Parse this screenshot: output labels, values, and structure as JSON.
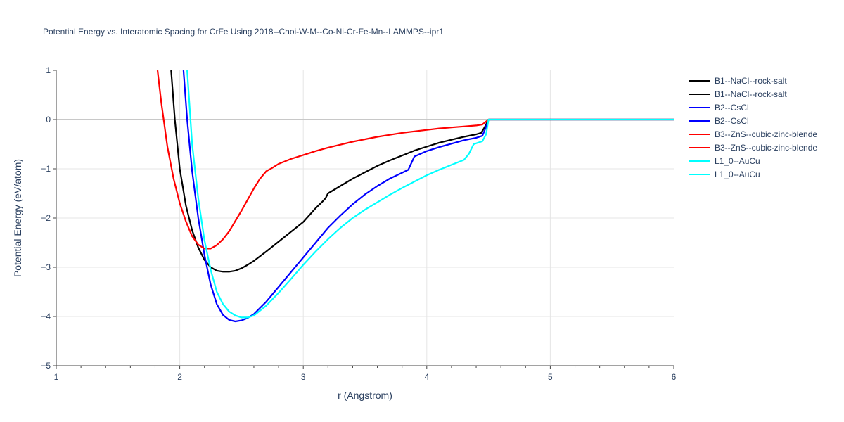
{
  "chart_data": {
    "type": "line",
    "title": "Potential Energy vs. Interatomic Spacing for CrFe Using 2018--Choi-W-M--Co-Ni-Cr-Fe-Mn--LAMMPS--ipr1",
    "xlabel": "r (Angstrom)",
    "ylabel": "Potential Energy (eV/atom)",
    "xlim": [
      1,
      6
    ],
    "ylim": [
      -5,
      1
    ],
    "xticks": [
      "1",
      "2",
      "3",
      "4",
      "5",
      "6"
    ],
    "yticks": [
      "1",
      "0",
      "−1",
      "−2",
      "−3",
      "−4",
      "−5"
    ],
    "grid": true,
    "legend_position": "top-right",
    "series": [
      {
        "name": "B1--NaCl--rock-salt",
        "color": "#000000",
        "x": [
          1.93,
          1.96,
          2.0,
          2.05,
          2.1,
          2.15,
          2.2,
          2.25,
          2.3,
          2.35,
          2.4,
          2.45,
          2.5,
          2.55,
          2.6,
          2.7,
          2.8,
          2.9,
          3.0,
          3.1,
          3.15,
          3.18,
          3.2,
          3.3,
          3.4,
          3.5,
          3.6,
          3.7,
          3.8,
          3.9,
          4.0,
          4.1,
          4.2,
          4.3,
          4.4,
          4.44,
          4.47,
          4.5,
          5.0,
          6.0
        ],
        "y": [
          1.0,
          0.0,
          -1.0,
          -1.75,
          -2.25,
          -2.6,
          -2.85,
          -3.0,
          -3.07,
          -3.09,
          -3.09,
          -3.07,
          -3.02,
          -2.95,
          -2.87,
          -2.68,
          -2.48,
          -2.28,
          -2.08,
          -1.8,
          -1.68,
          -1.6,
          -1.5,
          -1.35,
          -1.2,
          -1.07,
          -0.94,
          -0.83,
          -0.73,
          -0.63,
          -0.55,
          -0.47,
          -0.41,
          -0.35,
          -0.3,
          -0.27,
          -0.15,
          0.0,
          0.0,
          0.0
        ]
      },
      {
        "name": "B2--CsCl",
        "color": "#0000ff",
        "x": [
          2.03,
          2.06,
          2.1,
          2.15,
          2.2,
          2.25,
          2.3,
          2.35,
          2.4,
          2.45,
          2.5,
          2.55,
          2.6,
          2.7,
          2.8,
          2.9,
          3.0,
          3.1,
          3.2,
          3.3,
          3.4,
          3.5,
          3.6,
          3.7,
          3.8,
          3.85,
          3.9,
          4.0,
          4.1,
          4.2,
          4.3,
          4.4,
          4.45,
          4.48,
          4.5,
          5.0,
          6.0
        ],
        "y": [
          1.0,
          0.0,
          -1.05,
          -2.0,
          -2.75,
          -3.35,
          -3.75,
          -3.97,
          -4.07,
          -4.1,
          -4.08,
          -4.03,
          -3.95,
          -3.7,
          -3.4,
          -3.1,
          -2.8,
          -2.5,
          -2.2,
          -1.95,
          -1.72,
          -1.52,
          -1.35,
          -1.2,
          -1.08,
          -1.02,
          -0.75,
          -0.64,
          -0.56,
          -0.49,
          -0.42,
          -0.37,
          -0.33,
          -0.15,
          0.0,
          0.0,
          0.0
        ]
      },
      {
        "name": "B3--ZnS--cubic-zinc-blende",
        "color": "#ff0000",
        "x": [
          1.82,
          1.85,
          1.9,
          1.95,
          2.0,
          2.05,
          2.1,
          2.15,
          2.2,
          2.25,
          2.3,
          2.35,
          2.4,
          2.5,
          2.6,
          2.65,
          2.7,
          2.75,
          2.8,
          2.9,
          3.0,
          3.1,
          3.2,
          3.3,
          3.4,
          3.5,
          3.6,
          3.7,
          3.8,
          3.9,
          4.0,
          4.1,
          4.2,
          4.3,
          4.4,
          4.45,
          4.5,
          5.0,
          6.0
        ],
        "y": [
          1.0,
          0.35,
          -0.55,
          -1.2,
          -1.7,
          -2.07,
          -2.37,
          -2.54,
          -2.62,
          -2.62,
          -2.55,
          -2.43,
          -2.27,
          -1.85,
          -1.4,
          -1.2,
          -1.05,
          -0.98,
          -0.9,
          -0.8,
          -0.72,
          -0.64,
          -0.57,
          -0.51,
          -0.45,
          -0.4,
          -0.35,
          -0.31,
          -0.27,
          -0.24,
          -0.21,
          -0.18,
          -0.16,
          -0.14,
          -0.12,
          -0.1,
          0.0,
          0.0,
          0.0
        ]
      },
      {
        "name": "L1_0--AuCu",
        "color": "#00ffff",
        "x": [
          2.06,
          2.1,
          2.15,
          2.2,
          2.25,
          2.3,
          2.35,
          2.4,
          2.45,
          2.5,
          2.55,
          2.6,
          2.7,
          2.8,
          2.9,
          3.0,
          3.1,
          3.2,
          3.3,
          3.4,
          3.5,
          3.6,
          3.7,
          3.8,
          3.9,
          4.0,
          4.1,
          4.2,
          4.3,
          4.34,
          4.38,
          4.45,
          4.48,
          4.5,
          5.0,
          6.0
        ],
        "y": [
          1.0,
          -0.5,
          -1.6,
          -2.45,
          -3.05,
          -3.5,
          -3.75,
          -3.9,
          -3.98,
          -4.02,
          -4.02,
          -3.98,
          -3.78,
          -3.52,
          -3.24,
          -2.95,
          -2.68,
          -2.43,
          -2.2,
          -2.0,
          -1.83,
          -1.68,
          -1.53,
          -1.39,
          -1.26,
          -1.13,
          -1.02,
          -0.92,
          -0.82,
          -0.7,
          -0.5,
          -0.44,
          -0.3,
          0.0,
          0.0,
          0.0
        ]
      }
    ]
  },
  "legend": [
    {
      "label": "B1--NaCl--rock-salt",
      "color": "#000000"
    },
    {
      "label": "B1--NaCl--rock-salt",
      "color": "#000000"
    },
    {
      "label": "B2--CsCl",
      "color": "#0000ff"
    },
    {
      "label": "B2--CsCl",
      "color": "#0000ff"
    },
    {
      "label": "B3--ZnS--cubic-zinc-blende",
      "color": "#ff0000"
    },
    {
      "label": "B3--ZnS--cubic-zinc-blende",
      "color": "#ff0000"
    },
    {
      "label": "L1_0--AuCu",
      "color": "#00ffff"
    },
    {
      "label": "L1_0--AuCu",
      "color": "#00ffff"
    }
  ]
}
